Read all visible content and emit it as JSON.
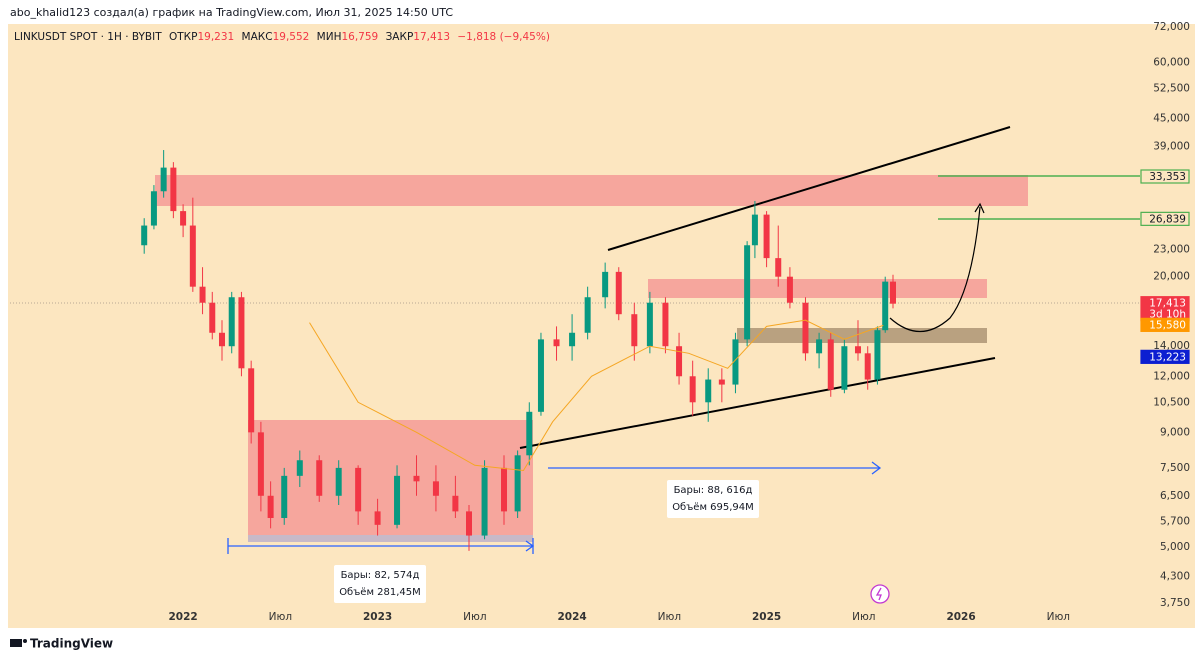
{
  "header": {
    "caption": "abo_khalid123 создал(а) график на TradingView.com, Июл 31, 2025 14:50 UTC",
    "symbol": "LINKUSDT SPOT · 1H · BYBIT",
    "open_label": "ОТКР",
    "open": "19,231",
    "high_label": "МАКС",
    "high": "19,552",
    "low_label": "МИН",
    "low": "16,759",
    "close_label": "ЗАКР",
    "close": "17,413",
    "change": "−1,818 (−9,45%)"
  },
  "footer": {
    "brand": "TradingView"
  },
  "boxes": [
    {
      "bars": "Бары: 82, 574д",
      "volume": "Объём 281,45M"
    },
    {
      "bars": "Бары: 88, 616д",
      "volume": "Объём 695,94M"
    }
  ],
  "chart_data": {
    "type": "candlestick",
    "log_scale": true,
    "xlim": [
      2021.11,
      2026.92
    ],
    "xticks": [
      2022,
      {
        "value": 2022.5,
        "label": "Июл"
      },
      2023,
      {
        "value": 2023.5,
        "label": "Июл"
      },
      2024,
      {
        "value": 2024.5,
        "label": "Июл"
      },
      2025,
      {
        "value": 2025.5,
        "label": "Июл"
      },
      2026,
      {
        "value": 2026.5,
        "label": "Июл"
      }
    ],
    "ylim": [
      3750,
      72000
    ],
    "yticks": [
      {
        "value": 72000,
        "label": "72,000"
      },
      {
        "value": 60000,
        "label": "60,000"
      },
      {
        "value": 52500,
        "label": "52,500"
      },
      {
        "value": 45000,
        "label": "45,000"
      },
      {
        "value": 39000,
        "label": "39,000"
      },
      {
        "value": 23000,
        "label": "23,000"
      },
      {
        "value": 20000,
        "label": "20,000"
      },
      {
        "value": 14000,
        "label": "14,000"
      },
      {
        "value": 12000,
        "label": "12,000"
      },
      {
        "value": 10500,
        "label": "10,500"
      },
      {
        "value": 9000,
        "label": "9,000"
      },
      {
        "value": 7500,
        "label": "7,500"
      },
      {
        "value": 6500,
        "label": "6,500"
      },
      {
        "value": 5700,
        "label": "5,700"
      },
      {
        "value": 5000,
        "label": "5,000"
      },
      {
        "value": 4300,
        "label": "4,300"
      },
      {
        "value": 3750,
        "label": "3,750"
      }
    ],
    "price_tags": [
      {
        "value": 33353,
        "label": "33,353",
        "color": "#4caf50",
        "style": "outline"
      },
      {
        "value": 26839,
        "label": "26,839",
        "color": "#4caf50",
        "style": "outline"
      },
      {
        "value": 17413,
        "label": "17,413",
        "color": "#f23645",
        "style": "fill",
        "sub": "3d 10h"
      },
      {
        "value": 15580,
        "label": "15,580",
        "color": "#ff9800",
        "style": "fill"
      },
      {
        "value": 13223,
        "label": "13,223",
        "color": "#0c1fd1",
        "style": "fill"
      }
    ],
    "up_color": "#089981",
    "down_color": "#f23645",
    "ma_color": "#f5a623",
    "candles": [
      [
        2021.8,
        23500,
        27000,
        22500,
        26000
      ],
      [
        2021.85,
        26000,
        32000,
        25500,
        31000
      ],
      [
        2021.9,
        31000,
        38300,
        30000,
        35000
      ],
      [
        2021.95,
        35000,
        36000,
        27000,
        28000
      ],
      [
        2022.0,
        28000,
        29000,
        24500,
        26000
      ],
      [
        2022.05,
        26000,
        30000,
        18500,
        19000
      ],
      [
        2022.1,
        19000,
        21000,
        16500,
        17500
      ],
      [
        2022.15,
        17500,
        18500,
        14500,
        15000
      ],
      [
        2022.2,
        15000,
        16000,
        13000,
        14000
      ],
      [
        2022.25,
        14000,
        18500,
        13500,
        18000
      ],
      [
        2022.3,
        18000,
        18500,
        12000,
        12500
      ],
      [
        2022.35,
        12500,
        13000,
        8500,
        9000
      ],
      [
        2022.4,
        9000,
        9500,
        6000,
        6500
      ],
      [
        2022.45,
        6500,
        7000,
        5500,
        5800
      ],
      [
        2022.52,
        5800,
        7500,
        5600,
        7200
      ],
      [
        2022.6,
        7200,
        8200,
        6800,
        7800
      ],
      [
        2022.7,
        7800,
        8000,
        6300,
        6500
      ],
      [
        2022.8,
        6500,
        7800,
        6200,
        7500
      ],
      [
        2022.9,
        7500,
        7600,
        5600,
        6000
      ],
      [
        2023.0,
        6000,
        6400,
        5300,
        5600
      ],
      [
        2023.1,
        5600,
        7600,
        5500,
        7200
      ],
      [
        2023.2,
        7200,
        8000,
        6500,
        7000
      ],
      [
        2023.3,
        7000,
        7600,
        6000,
        6500
      ],
      [
        2023.4,
        6500,
        7200,
        5800,
        6000
      ],
      [
        2023.47,
        6000,
        6200,
        4900,
        5300
      ],
      [
        2023.55,
        5300,
        7800,
        5200,
        7500
      ],
      [
        2023.65,
        7500,
        8000,
        5600,
        6000
      ],
      [
        2023.72,
        6000,
        8200,
        5800,
        8000
      ],
      [
        2023.78,
        8000,
        10500,
        7600,
        10000
      ],
      [
        2023.84,
        10000,
        15000,
        9800,
        14500
      ],
      [
        2023.92,
        14500,
        15500,
        13000,
        14000
      ],
      [
        2024.0,
        14000,
        16500,
        13000,
        15000
      ],
      [
        2024.08,
        15000,
        19000,
        14500,
        18000
      ],
      [
        2024.17,
        18000,
        21500,
        17000,
        20500
      ],
      [
        2024.24,
        20500,
        21000,
        16000,
        16500
      ],
      [
        2024.32,
        16500,
        17500,
        13000,
        14000
      ],
      [
        2024.4,
        14000,
        18500,
        13500,
        17500
      ],
      [
        2024.48,
        17500,
        18000,
        13500,
        14000
      ],
      [
        2024.55,
        14000,
        15000,
        11500,
        12000
      ],
      [
        2024.62,
        12000,
        13000,
        9800,
        10500
      ],
      [
        2024.7,
        10500,
        12500,
        9500,
        11800
      ],
      [
        2024.77,
        11800,
        12500,
        10500,
        11500
      ],
      [
        2024.84,
        11500,
        15000,
        11000,
        14500
      ],
      [
        2024.9,
        14500,
        24000,
        14000,
        23500
      ],
      [
        2024.94,
        23500,
        29500,
        22000,
        27500
      ],
      [
        2025.0,
        27500,
        28000,
        21000,
        22000
      ],
      [
        2025.06,
        22000,
        26000,
        19000,
        20000
      ],
      [
        2025.12,
        20000,
        21000,
        17000,
        17500
      ],
      [
        2025.2,
        17500,
        18000,
        13000,
        13500
      ],
      [
        2025.27,
        13500,
        15000,
        12500,
        14500
      ],
      [
        2025.33,
        14500,
        15000,
        10800,
        11200
      ],
      [
        2025.4,
        11200,
        14500,
        11000,
        14000
      ],
      [
        2025.47,
        14000,
        16000,
        13000,
        13500
      ],
      [
        2025.52,
        13500,
        14000,
        11200,
        11800
      ],
      [
        2025.57,
        11800,
        15500,
        11500,
        15200
      ],
      [
        2025.61,
        15200,
        20000,
        15000,
        19500
      ],
      [
        2025.65,
        19500,
        20200,
        17000,
        17413
      ]
    ],
    "ma": {
      "x": [
        2022.65,
        2022.9,
        2023.2,
        2023.5,
        2023.75,
        2023.9,
        2024.1,
        2024.4,
        2024.6,
        2024.8,
        2025.0,
        2025.2,
        2025.4,
        2025.6
      ],
      "values": [
        15800,
        10500,
        9000,
        7600,
        7400,
        9500,
        12000,
        14000,
        13500,
        12500,
        15500,
        16000,
        14500,
        15580
      ]
    }
  }
}
